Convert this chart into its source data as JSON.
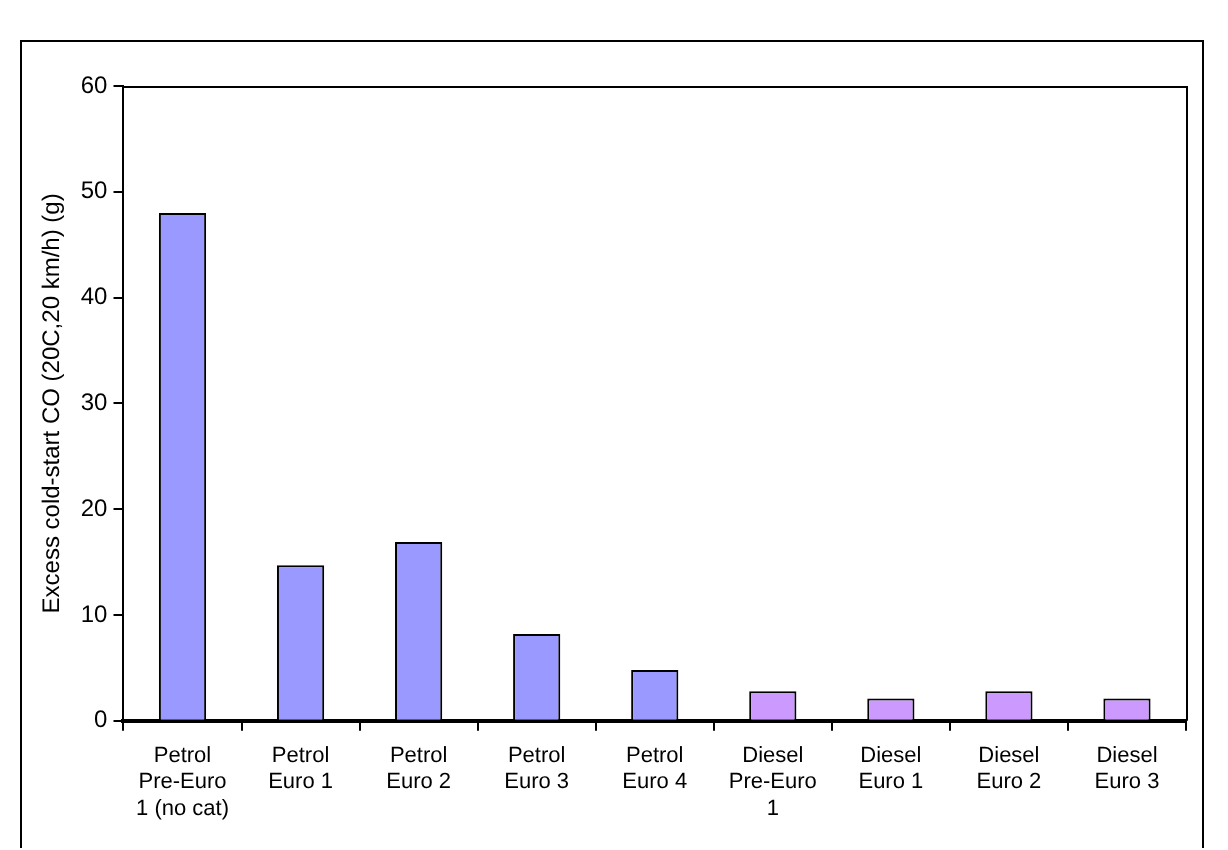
{
  "chart_data": {
    "type": "bar",
    "ylabel": "Excess cold-start CO (20C,20 km/h) (g)",
    "categories": [
      "Petrol Pre-Euro 1 (no cat)",
      "Petrol Euro 1",
      "Petrol Euro 2",
      "Petrol Euro 3",
      "Petrol Euro 4",
      "Diesel Pre-Euro 1",
      "Diesel Euro 1",
      "Diesel Euro 2",
      "Diesel Euro 3"
    ],
    "values": [
      48,
      14.7,
      16.9,
      8.2,
      4.8,
      2.8,
      2.1,
      2.8,
      2.1
    ],
    "colors": [
      "#9999ff",
      "#9999ff",
      "#9999ff",
      "#9999ff",
      "#9999ff",
      "#cc99ff",
      "#cc99ff",
      "#cc99ff",
      "#cc99ff"
    ],
    "ylim": [
      0,
      60
    ],
    "yticks": [
      0,
      10,
      20,
      30,
      40,
      50,
      60
    ],
    "grid": false,
    "legend": false
  }
}
